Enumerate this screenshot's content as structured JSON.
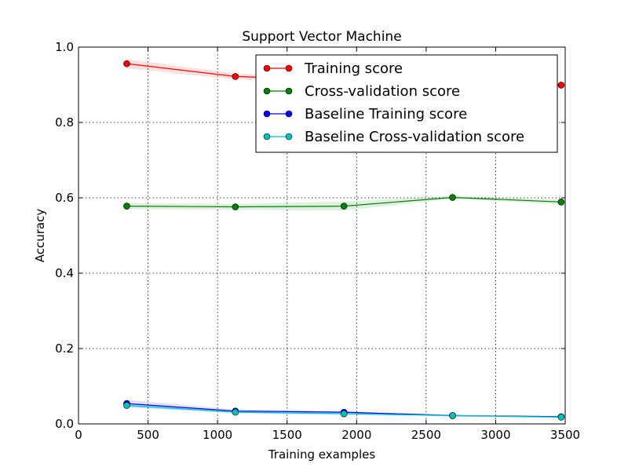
{
  "chart_data": {
    "type": "line",
    "title": "Support Vector Machine",
    "xlabel": "Training examples",
    "ylabel": "Accuracy",
    "xlim": [
      0,
      3500
    ],
    "ylim": [
      0.0,
      1.0
    ],
    "xticks": [
      0,
      500,
      1000,
      1500,
      2000,
      2500,
      3000,
      3500
    ],
    "yticks": [
      0.0,
      0.2,
      0.4,
      0.6,
      0.8,
      1.0
    ],
    "xtick_labels": [
      "0",
      "500",
      "1000",
      "1500",
      "2000",
      "2500",
      "3000",
      "3500"
    ],
    "ytick_labels": [
      "0.0",
      "0.2",
      "0.4",
      "0.6",
      "0.8",
      "1.0"
    ],
    "grid": true,
    "legend_position": "top-right",
    "x": [
      347,
      1128,
      1909,
      2690,
      3471
    ],
    "series": [
      {
        "name": "Training score",
        "color": "#ff0000",
        "values": [
          0.956,
          0.922,
          0.912,
          0.905,
          0.899
        ],
        "band": [
          0.012,
          0.008,
          0.006,
          0.005,
          0.004
        ]
      },
      {
        "name": "Cross-validation score",
        "color": "#008000",
        "values": [
          0.578,
          0.576,
          0.578,
          0.601,
          0.589
        ],
        "band": [
          0.008,
          0.008,
          0.012,
          0.004,
          0.006
        ]
      },
      {
        "name": "Baseline Training score",
        "color": "#0000ff",
        "values": [
          0.054,
          0.034,
          0.031,
          0.022,
          0.019
        ],
        "band": [
          0.01,
          0.004,
          0.003,
          0.002,
          0.002
        ]
      },
      {
        "name": "Baseline Cross-validation score",
        "color": "#00bfbf",
        "values": [
          0.049,
          0.031,
          0.027,
          0.022,
          0.018
        ],
        "band": [
          0.006,
          0.004,
          0.004,
          0.003,
          0.003
        ]
      }
    ]
  }
}
